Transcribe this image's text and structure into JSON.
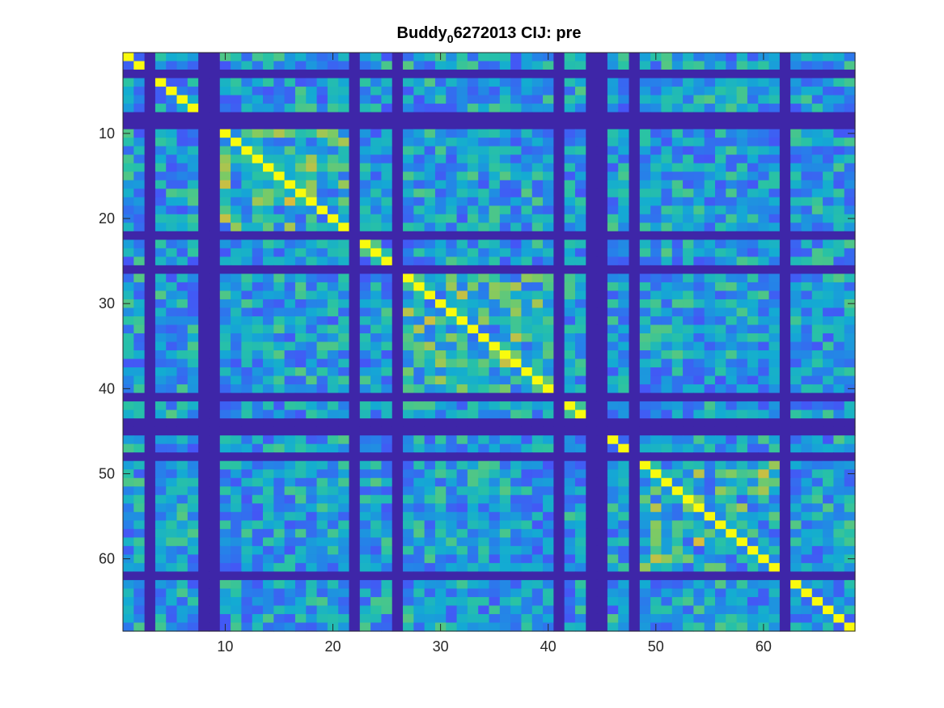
{
  "chart_data": {
    "type": "heatmap",
    "title_main": "Buddy",
    "title_sub": "0",
    "title_rest": "6272013 CIJ: pre",
    "n": 68,
    "xlim": [
      0.5,
      68.5
    ],
    "ylim": [
      0.5,
      68.5
    ],
    "y_reversed": true,
    "grid": false,
    "colormap": "parula",
    "x_ticks": [
      10,
      20,
      30,
      40,
      50,
      60
    ],
    "y_ticks": [
      10,
      20,
      30,
      40,
      50,
      60
    ],
    "x_tick_labels": [
      "10",
      "20",
      "30",
      "40",
      "50",
      "60"
    ],
    "y_tick_labels": [
      "10",
      "20",
      "30",
      "40",
      "50",
      "60"
    ],
    "empty_channels": [
      3,
      8,
      9,
      22,
      26,
      41,
      44,
      45,
      48,
      62
    ],
    "diagonal_value": 1.0,
    "off_diagonal_range": [
      0.15,
      0.75
    ],
    "cluster_blocks": [
      [
        10,
        21
      ],
      [
        27,
        40
      ],
      [
        49,
        61
      ]
    ]
  }
}
